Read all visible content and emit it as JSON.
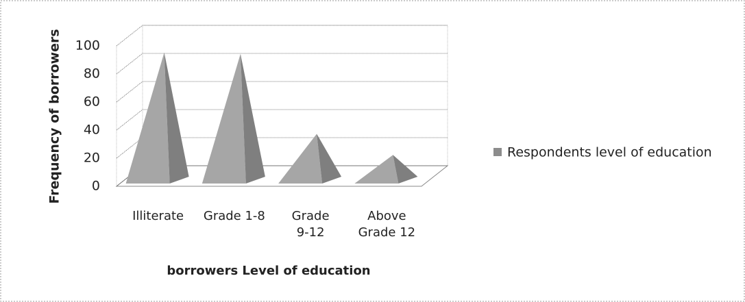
{
  "chart_data": {
    "type": "pyramid3d",
    "categories": [
      "Illiterate",
      "Grade 1-8",
      "Grade 9-12",
      "Above Grade 12"
    ],
    "series": [
      {
        "name": "Respondents level of education",
        "color": "#a6a6a6",
        "values": [
          88,
          87,
          30,
          15
        ]
      }
    ],
    "xlabel": "borrowers Level of education",
    "ylabel": "Frequency of borrowers",
    "ylim": [
      0,
      100
    ],
    "yticks": [
      0,
      20,
      40,
      60,
      80,
      100
    ],
    "grid": true,
    "legend": "right"
  }
}
